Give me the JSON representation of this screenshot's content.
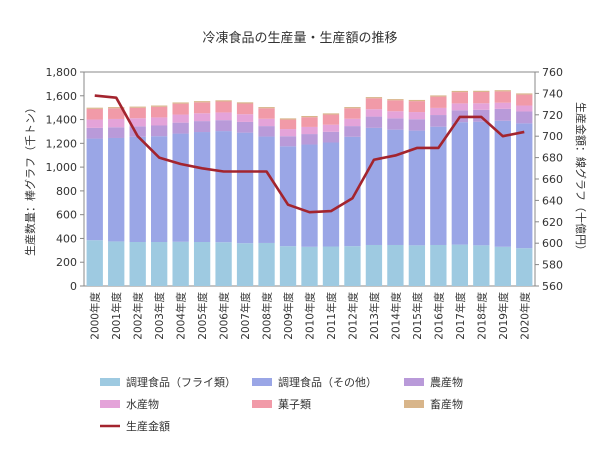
{
  "chart_data": {
    "type": "bar",
    "title": "冷凍食品の生産量・生産額の推移",
    "ylabel": "生産数量：棒グラフ（千トン）",
    "y2label": "生産金額：線グラフ（十億円）",
    "ylim": [
      0,
      1800
    ],
    "yticks": [
      "0",
      "200",
      "400",
      "600",
      "800",
      "1,000",
      "1,200",
      "1,400",
      "1,600",
      "1,800"
    ],
    "y2lim": [
      560,
      760
    ],
    "y2ticks": [
      "560",
      "580",
      "600",
      "620",
      "640",
      "660",
      "680",
      "700",
      "720",
      "740",
      "760"
    ],
    "stacked": true,
    "grid": false,
    "legend_position": "bottom",
    "categories": [
      "2000年度",
      "2001年度",
      "2002年度",
      "2003年度",
      "2004年度",
      "2005年度",
      "2006年度",
      "2007年度",
      "2008年度",
      "2009年度",
      "2010年度",
      "2011年度",
      "2012年度",
      "2013年度",
      "2014年度",
      "2015年度",
      "2016年度",
      "2017年度",
      "2018年度",
      "2019年度",
      "2020年度"
    ],
    "series": [
      {
        "name": "調理食品（フライ類）",
        "color": "#9ecae1",
        "values": [
          385,
          375,
          370,
          370,
          372,
          370,
          368,
          360,
          362,
          335,
          330,
          332,
          335,
          345,
          345,
          342,
          345,
          348,
          342,
          330,
          318
        ]
      },
      {
        "name": "調理食品（その他）",
        "color": "#9aa6e6",
        "values": [
          855,
          870,
          885,
          890,
          910,
          925,
          935,
          930,
          895,
          840,
          860,
          875,
          920,
          985,
          970,
          965,
          995,
          1030,
          1040,
          1060,
          1050
        ]
      },
      {
        "name": "農産物",
        "color": "#b99ad9",
        "values": [
          90,
          90,
          88,
          90,
          92,
          92,
          92,
          90,
          88,
          85,
          88,
          90,
          90,
          95,
          95,
          96,
          98,
          100,
          100,
          100,
          100
        ]
      },
      {
        "name": "水産物",
        "color": "#e4a3d9",
        "values": [
          70,
          70,
          68,
          68,
          68,
          66,
          65,
          65,
          62,
          60,
          60,
          60,
          62,
          62,
          60,
          60,
          60,
          58,
          55,
          52,
          50
        ]
      },
      {
        "name": "菓子類",
        "color": "#f19aa8",
        "values": [
          90,
          90,
          88,
          90,
          92,
          92,
          92,
          90,
          88,
          80,
          82,
          85,
          88,
          92,
          92,
          92,
          95,
          95,
          95,
          95,
          92
        ]
      },
      {
        "name": "畜産物",
        "color": "#d8b58a",
        "values": [
          10,
          10,
          10,
          10,
          10,
          10,
          10,
          10,
          10,
          10,
          10,
          10,
          10,
          10,
          10,
          10,
          10,
          10,
          10,
          10,
          10
        ]
      }
    ],
    "line": {
      "name": "生産金額",
      "color": "#a3242e",
      "axis": "right",
      "values": [
        738,
        736,
        700,
        680,
        674,
        670,
        667,
        667,
        667,
        636,
        629,
        630,
        642,
        678,
        682,
        689,
        689,
        718,
        718,
        700,
        704
      ]
    }
  }
}
